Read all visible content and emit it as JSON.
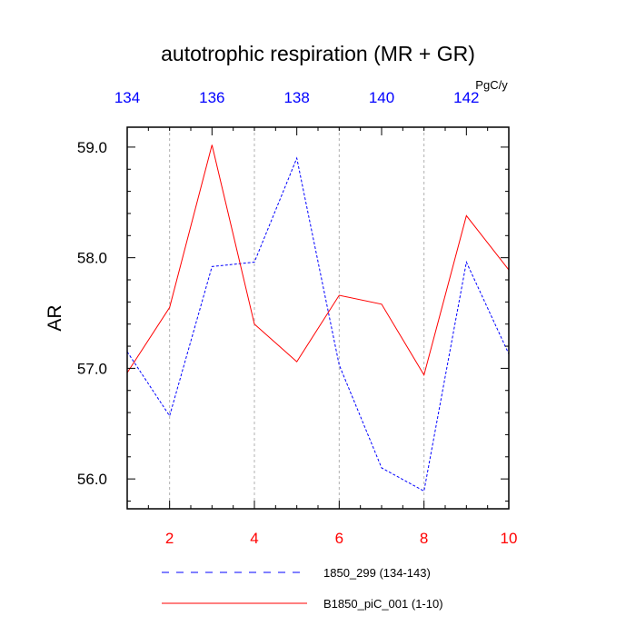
{
  "chart_data": {
    "type": "line",
    "title": "autotrophic respiration (MR + GR)",
    "ylabel": "AR",
    "units": "PgC/y",
    "ylim": [
      55.73,
      59.18
    ],
    "yticks": [
      56.0,
      57.0,
      58.0,
      59.0
    ],
    "ytick_labels": [
      "56.0",
      "57.0",
      "58.0",
      "59.0"
    ],
    "bottom_axis": {
      "range": [
        1,
        10
      ],
      "ticks": [
        2,
        4,
        6,
        8,
        10
      ],
      "tick_labels": [
        "2",
        "4",
        "6",
        "8",
        "10"
      ],
      "color": "#ff0000"
    },
    "top_axis": {
      "range": [
        134,
        143
      ],
      "ticks": [
        134,
        136,
        138,
        140,
        142
      ],
      "tick_labels": [
        "134",
        "136",
        "138",
        "140",
        "142"
      ],
      "color": "#0000ff"
    },
    "grid": "vertical dotted at bottom-axis ticks",
    "legend_position": "bottom",
    "series": [
      {
        "name": "1850_299 (134-143)",
        "axis": "top",
        "color": "#0000ff",
        "style": "dashed",
        "x": [
          134,
          135,
          136,
          137,
          138,
          139,
          140,
          141,
          142,
          143
        ],
        "values": [
          57.15,
          56.57,
          57.92,
          57.96,
          58.9,
          57.03,
          56.1,
          55.89,
          57.96,
          57.13
        ]
      },
      {
        "name": "B1850_piC_001 (1-10)",
        "axis": "bottom",
        "color": "#ff0000",
        "style": "solid",
        "x": [
          1,
          2,
          3,
          4,
          5,
          6,
          7,
          8,
          9,
          10
        ],
        "values": [
          56.96,
          57.55,
          59.02,
          57.4,
          57.06,
          57.66,
          57.58,
          56.94,
          58.38,
          57.89
        ]
      }
    ]
  }
}
